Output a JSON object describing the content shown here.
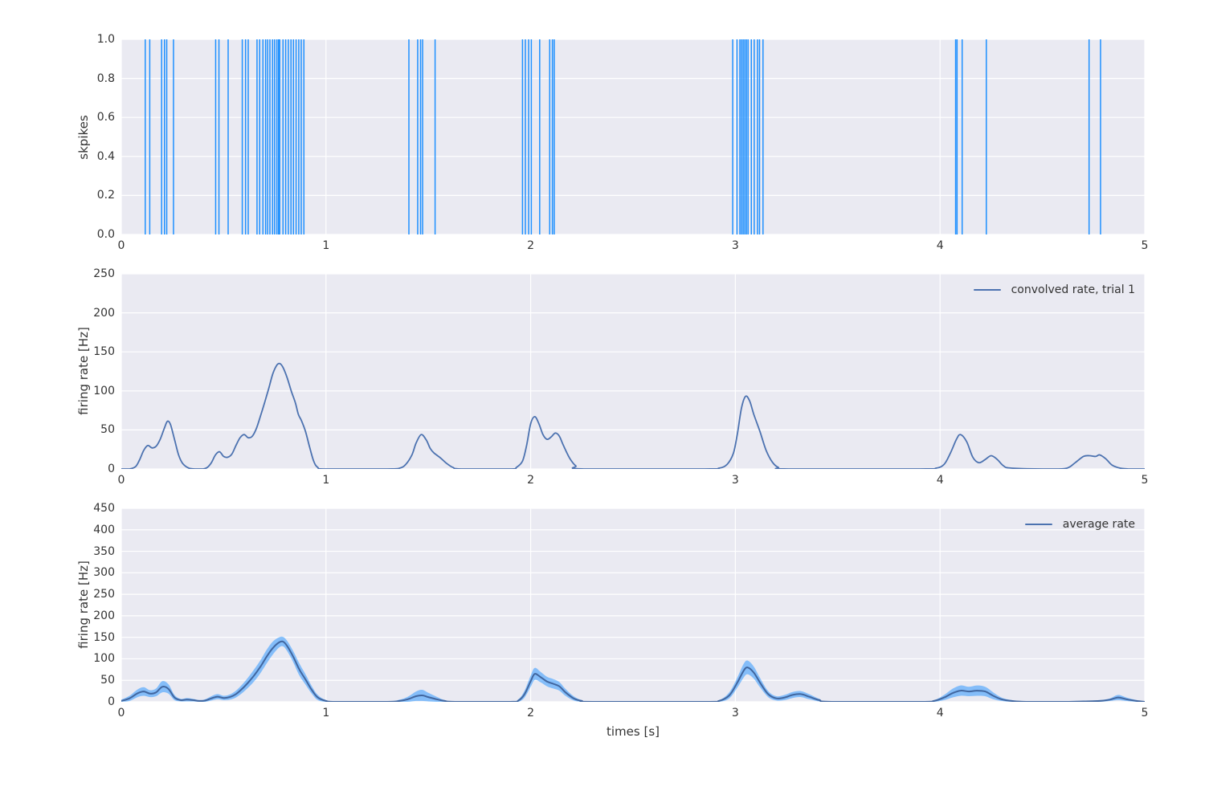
{
  "colors": {
    "figure_bg": "#ffffff",
    "axes_bg": "#eaeaf2",
    "grid": "#ffffff",
    "spike": "#1e90ff",
    "line": "#4c72b0",
    "mean_line": "#41669f",
    "band": "rgba(30,144,255,0.5)",
    "text": "#333333"
  },
  "chart_data": [
    {
      "id": "spike-raster",
      "type": "eventplot",
      "ylabel": "skpikes",
      "xlim": [
        0,
        5
      ],
      "ylim": [
        0,
        1
      ],
      "xticks": [
        "0",
        "1",
        "2",
        "3",
        "4",
        "5"
      ],
      "yticks": [
        "0.0",
        "0.2",
        "0.4",
        "0.6",
        "0.8",
        "1.0"
      ],
      "grid": true,
      "event_color": "#1e90ff",
      "event_times": [
        0.117,
        0.139,
        0.197,
        0.211,
        0.222,
        0.255,
        0.461,
        0.477,
        0.522,
        0.591,
        0.607,
        0.62,
        0.663,
        0.676,
        0.692,
        0.705,
        0.715,
        0.726,
        0.739,
        0.749,
        0.76,
        0.768,
        0.774,
        0.79,
        0.803,
        0.816,
        0.829,
        0.841,
        0.854,
        0.867,
        0.879,
        0.892,
        1.405,
        1.448,
        1.462,
        1.472,
        1.533,
        1.96,
        1.974,
        1.99,
        2.003,
        2.044,
        2.093,
        2.106,
        2.115,
        2.987,
        3.008,
        3.022,
        3.03,
        3.038,
        3.046,
        3.054,
        3.062,
        3.078,
        3.092,
        3.108,
        3.118,
        3.135,
        4.076,
        4.083,
        4.108,
        4.226,
        4.728,
        4.784
      ]
    },
    {
      "id": "convolved-rate",
      "type": "line",
      "ylabel": "firing rate [Hz]",
      "legend_label": "convolved rate, trial 1",
      "legend_position": "upper right",
      "xlim": [
        0,
        5
      ],
      "ylim": [
        0,
        250
      ],
      "xticks": [
        "0",
        "1",
        "2",
        "3",
        "4",
        "5"
      ],
      "yticks": [
        "0",
        "50",
        "100",
        "150",
        "200",
        "250"
      ],
      "grid": true,
      "series": [
        {
          "name": "convolved rate, trial 1",
          "color": "#4c72b0",
          "x": [
            0.0,
            0.04,
            0.07,
            0.09,
            0.11,
            0.13,
            0.15,
            0.17,
            0.19,
            0.21,
            0.225,
            0.24,
            0.26,
            0.28,
            0.3,
            0.33,
            0.36,
            0.4,
            0.42,
            0.44,
            0.46,
            0.48,
            0.5,
            0.52,
            0.54,
            0.56,
            0.58,
            0.6,
            0.62,
            0.64,
            0.66,
            0.68,
            0.7,
            0.72,
            0.74,
            0.76,
            0.775,
            0.79,
            0.81,
            0.83,
            0.85,
            0.865,
            0.88,
            0.9,
            0.92,
            0.94,
            0.96,
            1.0,
            1.3,
            1.36,
            1.39,
            1.42,
            1.44,
            1.465,
            1.49,
            1.51,
            1.53,
            1.56,
            1.59,
            1.62,
            1.66,
            1.9,
            1.93,
            1.96,
            1.98,
            2.0,
            2.02,
            2.04,
            2.06,
            2.08,
            2.1,
            2.12,
            2.14,
            2.16,
            2.19,
            2.22,
            2.26,
            2.85,
            2.92,
            2.96,
            2.99,
            3.01,
            3.03,
            3.05,
            3.07,
            3.09,
            3.12,
            3.15,
            3.18,
            3.21,
            3.26,
            3.9,
            3.98,
            4.02,
            4.05,
            4.08,
            4.1,
            4.13,
            4.16,
            4.19,
            4.22,
            4.25,
            4.28,
            4.31,
            4.35,
            4.55,
            4.62,
            4.66,
            4.7,
            4.73,
            4.76,
            4.78,
            4.81,
            4.84,
            4.88,
            4.92,
            5.0
          ],
          "y": [
            0,
            0,
            3,
            12,
            24,
            30,
            27,
            29,
            38,
            52,
            61,
            57,
            38,
            18,
            7,
            1,
            0,
            0,
            2,
            8,
            18,
            22,
            16,
            15,
            19,
            30,
            40,
            44,
            40,
            42,
            52,
            68,
            85,
            103,
            122,
            133,
            135,
            130,
            117,
            100,
            85,
            70,
            62,
            48,
            28,
            10,
            2,
            0,
            0,
            1,
            6,
            18,
            33,
            44,
            37,
            26,
            20,
            14,
            7,
            2,
            0,
            0,
            2,
            10,
            30,
            58,
            67,
            58,
            44,
            38,
            41,
            46,
            42,
            30,
            14,
            4,
            0,
            0,
            1,
            6,
            20,
            45,
            78,
            93,
            87,
            70,
            48,
            24,
            9,
            2,
            0,
            0,
            1,
            6,
            20,
            38,
            44,
            35,
            15,
            8,
            12,
            17,
            12,
            4,
            1,
            0,
            1,
            8,
            16,
            17,
            16,
            18,
            13,
            5,
            1,
            0,
            0
          ]
        }
      ]
    },
    {
      "id": "average-rate",
      "type": "line+band",
      "ylabel": "firing rate [Hz]",
      "xlabel": "times [s]",
      "legend_label": "average rate",
      "legend_position": "upper right",
      "xlim": [
        0,
        5
      ],
      "ylim": [
        0,
        450
      ],
      "xticks": [
        "0",
        "1",
        "2",
        "3",
        "4",
        "5"
      ],
      "yticks": [
        "0",
        "50",
        "100",
        "150",
        "200",
        "250",
        "300",
        "350",
        "400",
        "450"
      ],
      "grid": true,
      "series": [
        {
          "name": "average rate",
          "color": "#41669f",
          "band_color": "rgba(30,144,255,0.5)",
          "x": [
            0.0,
            0.04,
            0.08,
            0.11,
            0.14,
            0.17,
            0.2,
            0.23,
            0.26,
            0.29,
            0.32,
            0.35,
            0.38,
            0.41,
            0.44,
            0.47,
            0.5,
            0.53,
            0.56,
            0.59,
            0.62,
            0.65,
            0.68,
            0.71,
            0.74,
            0.77,
            0.79,
            0.81,
            0.84,
            0.87,
            0.9,
            0.93,
            0.96,
            1.0,
            1.05,
            1.3,
            1.36,
            1.4,
            1.44,
            1.47,
            1.5,
            1.54,
            1.58,
            1.63,
            1.9,
            1.94,
            1.97,
            2.0,
            2.02,
            2.05,
            2.08,
            2.11,
            2.14,
            2.17,
            2.21,
            2.25,
            2.3,
            2.85,
            2.92,
            2.97,
            3.01,
            3.04,
            3.06,
            3.09,
            3.12,
            3.16,
            3.2,
            3.24,
            3.28,
            3.32,
            3.36,
            3.41,
            3.47,
            3.9,
            3.97,
            4.02,
            4.06,
            4.1,
            4.14,
            4.18,
            4.22,
            4.26,
            4.3,
            4.35,
            4.42,
            4.6,
            4.7,
            4.78,
            4.83,
            4.87,
            4.91,
            4.96,
            5.0
          ],
          "mean": [
            2,
            8,
            20,
            24,
            19,
            22,
            35,
            30,
            10,
            4,
            5,
            4,
            2,
            3,
            8,
            12,
            9,
            11,
            18,
            30,
            45,
            62,
            82,
            105,
            125,
            138,
            140,
            130,
            105,
            75,
            52,
            28,
            10,
            2,
            0,
            0,
            2,
            6,
            13,
            15,
            11,
            6,
            2,
            0,
            0,
            3,
            18,
            48,
            65,
            57,
            47,
            42,
            36,
            22,
            8,
            2,
            0,
            0,
            2,
            15,
            45,
            72,
            80,
            68,
            45,
            18,
            8,
            10,
            16,
            18,
            12,
            4,
            0,
            0,
            2,
            10,
            20,
            26,
            24,
            26,
            24,
            14,
            6,
            2,
            0,
            0,
            1,
            2,
            5,
            10,
            6,
            2,
            0
          ],
          "band": [
            3,
            6,
            9,
            10,
            8,
            9,
            13,
            11,
            6,
            3,
            4,
            3,
            2,
            3,
            5,
            6,
            5,
            6,
            8,
            10,
            12,
            14,
            15,
            16,
            15,
            12,
            11,
            12,
            13,
            14,
            12,
            9,
            6,
            2,
            0,
            1,
            3,
            6,
            11,
            13,
            10,
            6,
            2,
            1,
            1,
            3,
            8,
            13,
            14,
            12,
            11,
            11,
            10,
            8,
            5,
            2,
            0,
            0,
            2,
            7,
            12,
            16,
            16,
            14,
            11,
            7,
            5,
            6,
            7,
            7,
            6,
            3,
            0,
            0,
            2,
            6,
            10,
            12,
            11,
            12,
            11,
            8,
            4,
            2,
            0,
            0,
            1,
            2,
            3,
            6,
            4,
            2,
            0
          ]
        }
      ]
    }
  ]
}
